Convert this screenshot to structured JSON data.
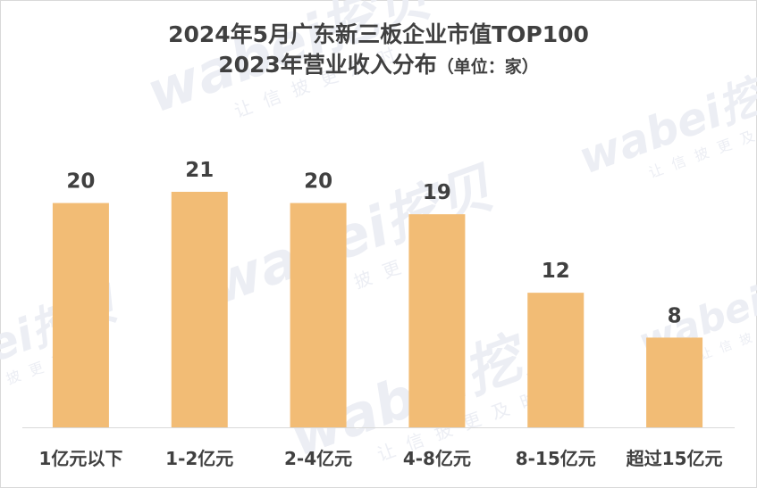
{
  "chart_data": {
    "type": "bar",
    "title": "2024年5月广东新三板企业市值TOP100",
    "subtitle": "2023年营业收入分布",
    "unit_note": "（单位：家）",
    "categories": [
      "1亿元以下",
      "1-2亿元",
      "2-4亿元",
      "4-8亿元",
      "8-15亿元",
      "超过15亿元"
    ],
    "values": [
      20,
      21,
      20,
      19,
      12,
      8
    ],
    "ylim": [
      0,
      25
    ],
    "grid": false,
    "bar_color": "#f2bc75",
    "data_labels": true
  },
  "watermark": {
    "brand": "wabei挖贝",
    "tagline": "让信披更及时"
  },
  "colors": {
    "text": "#404040",
    "axis": "#d9d9d9",
    "watermark": "#eceef4"
  }
}
